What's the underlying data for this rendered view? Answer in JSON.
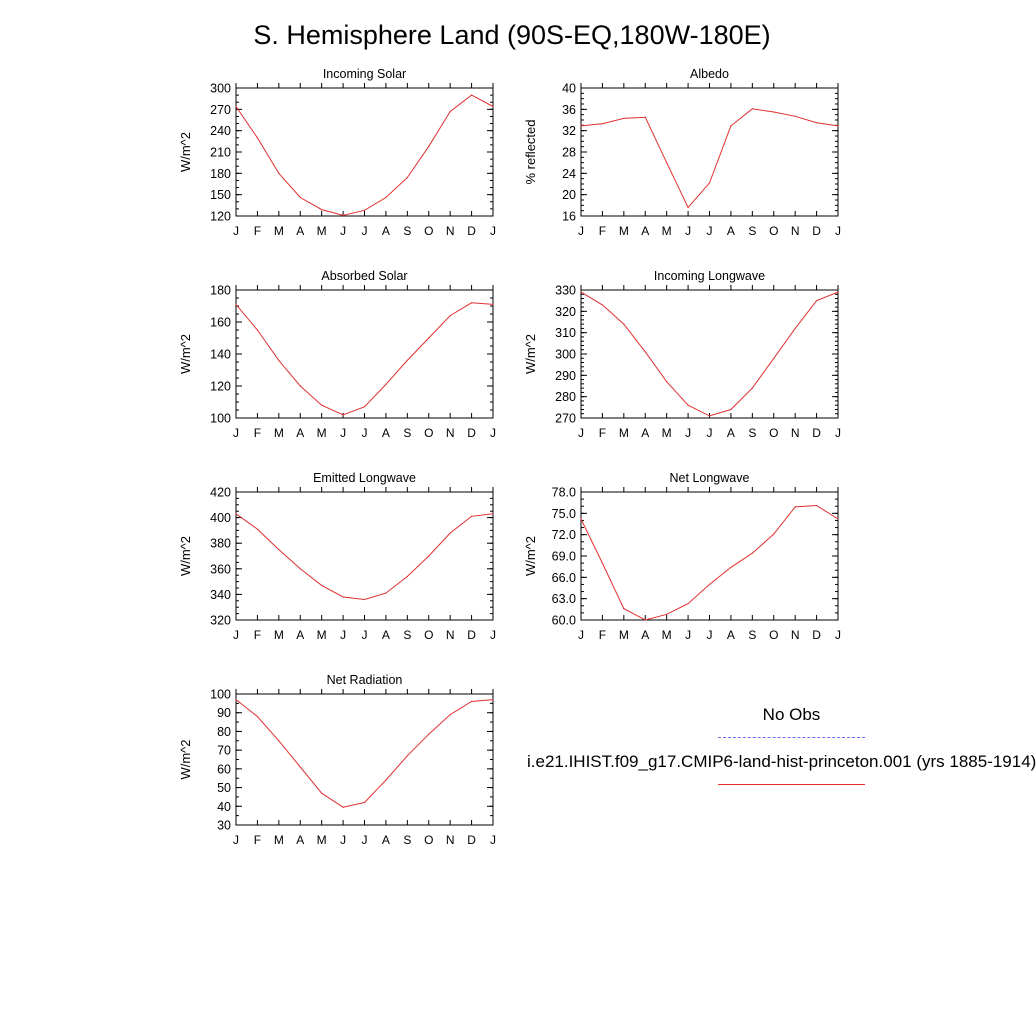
{
  "title": "S. Hemisphere Land (90S-EQ,180W-180E)",
  "months": [
    "J",
    "F",
    "M",
    "A",
    "M",
    "J",
    "J",
    "A",
    "S",
    "O",
    "N",
    "D",
    "J"
  ],
  "legend": {
    "obs_label": "No Obs",
    "obs_color": "#6a6af0",
    "model_label": "i.e21.IHIST.f09_g17.CMIP6-land-hist-princeton.001 (yrs 1885-1914)",
    "model_color": "#e03030"
  },
  "chart_data": [
    {
      "type": "line",
      "title": "Incoming Solar",
      "ylabel": "W/m^2",
      "ylim": [
        120,
        300
      ],
      "yticks": [
        "120",
        "150",
        "180",
        "210",
        "240",
        "270",
        "300"
      ],
      "yminor": 10,
      "series": [
        {
          "values": [
            274,
            230,
            180,
            146,
            129,
            121,
            128,
            146,
            174,
            218,
            267,
            290,
            274
          ]
        }
      ]
    },
    {
      "type": "line",
      "title": "Albedo",
      "ylabel": "% reflected",
      "ylim": [
        16,
        40
      ],
      "yticks": [
        "16",
        "20",
        "24",
        "28",
        "32",
        "36",
        "40"
      ],
      "yminor": 1,
      "series": [
        {
          "values": [
            32.9,
            33.3,
            34.3,
            34.5,
            26.0,
            17.6,
            22.2,
            32.9,
            36.1,
            35.5,
            34.7,
            33.5,
            32.9
          ]
        }
      ]
    },
    {
      "type": "line",
      "title": "Absorbed Solar",
      "ylabel": "W/m^2",
      "ylim": [
        100,
        180
      ],
      "yticks": [
        "100",
        "120",
        "140",
        "160",
        "180"
      ],
      "yminor": 5,
      "series": [
        {
          "values": [
            171,
            155,
            136,
            120,
            108,
            102,
            107,
            121,
            136,
            150,
            164,
            172,
            171
          ]
        }
      ]
    },
    {
      "type": "line",
      "title": "Incoming Longwave",
      "ylabel": "W/m^2",
      "ylim": [
        270,
        330
      ],
      "yticks": [
        "270",
        "280",
        "290",
        "300",
        "310",
        "320",
        "330"
      ],
      "yminor": 2,
      "series": [
        {
          "values": [
            329,
            323,
            314,
            301,
            287,
            276,
            271,
            274,
            284,
            298,
            312,
            325,
            329
          ]
        }
      ]
    },
    {
      "type": "line",
      "title": "Emitted Longwave",
      "ylabel": "W/m^2",
      "ylim": [
        320,
        420
      ],
      "yticks": [
        "320",
        "340",
        "360",
        "380",
        "400",
        "420"
      ],
      "yminor": 5,
      "series": [
        {
          "values": [
            403,
            391,
            375,
            360,
            347,
            338,
            336,
            341,
            354,
            370,
            388,
            401,
            403
          ]
        }
      ]
    },
    {
      "type": "line",
      "title": "Net Longwave",
      "ylabel": "W/m^2",
      "ylim": [
        60,
        78
      ],
      "yticks": [
        "60.0",
        "63.0",
        "66.0",
        "69.0",
        "72.0",
        "75.0",
        "78.0"
      ],
      "yminor": 1,
      "series": [
        {
          "values": [
            74.2,
            68.0,
            61.6,
            60.0,
            60.8,
            62.3,
            65.0,
            67.4,
            69.4,
            72.1,
            75.9,
            76.1,
            74.2
          ]
        }
      ]
    },
    {
      "type": "line",
      "title": "Net Radiation",
      "ylabel": "W/m^2",
      "ylim": [
        30,
        100
      ],
      "yticks": [
        "30",
        "40",
        "50",
        "60",
        "70",
        "80",
        "90",
        "100"
      ],
      "yminor": 5,
      "series": [
        {
          "values": [
            97,
            88,
            75,
            61,
            47,
            39.5,
            42,
            54,
            67,
            78.5,
            89,
            96,
            97
          ]
        }
      ]
    }
  ]
}
